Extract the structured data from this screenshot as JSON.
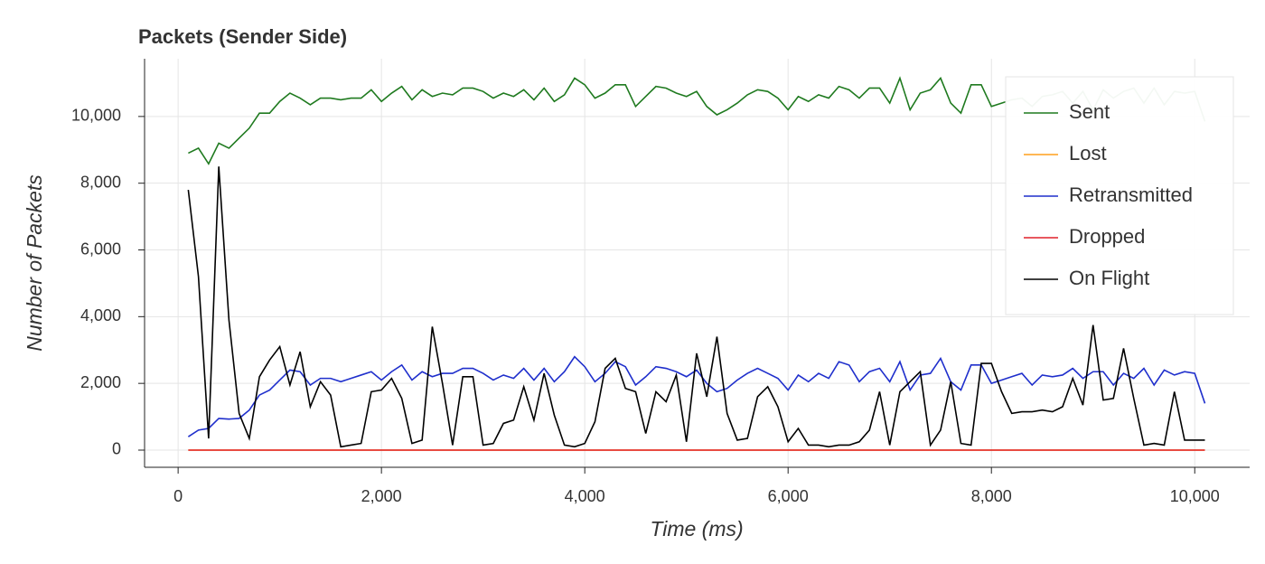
{
  "chart_data": {
    "type": "line",
    "title": "Packets (Sender Side)",
    "x_label": "Time (ms)",
    "y_label": "Number of Packets",
    "x": [
      100,
      200,
      300,
      400,
      500,
      600,
      700,
      800,
      900,
      1000,
      1100,
      1200,
      1300,
      1400,
      1500,
      1600,
      1700,
      1800,
      1900,
      2000,
      2100,
      2200,
      2300,
      2400,
      2500,
      2600,
      2700,
      2800,
      2900,
      3000,
      3100,
      3200,
      3300,
      3400,
      3500,
      3600,
      3700,
      3800,
      3900,
      4000,
      4100,
      4200,
      4300,
      4400,
      4500,
      4600,
      4700,
      4800,
      4900,
      5000,
      5100,
      5200,
      5300,
      5400,
      5500,
      5600,
      5700,
      5800,
      5900,
      6000,
      6100,
      6200,
      6300,
      6400,
      6500,
      6600,
      6700,
      6800,
      6900,
      7000,
      7100,
      7200,
      7300,
      7400,
      7500,
      7600,
      7700,
      7800,
      7900,
      8000,
      8100,
      8200,
      8300,
      8400,
      8500,
      8600,
      8700,
      8800,
      8900,
      9000,
      9100,
      9200,
      9300,
      9400,
      9500,
      9600,
      9700,
      9800,
      9900,
      10000,
      10100
    ],
    "series": [
      {
        "name": "Sent",
        "color": "#1f7a1f",
        "values": [
          8900,
          9050,
          8580,
          9200,
          9050,
          9350,
          9650,
          10100,
          10100,
          10450,
          10700,
          10550,
          10350,
          10550,
          10550,
          10500,
          10550,
          10550,
          10800,
          10450,
          10700,
          10900,
          10500,
          10800,
          10600,
          10700,
          10650,
          10850,
          10850,
          10750,
          10550,
          10700,
          10600,
          10800,
          10500,
          10850,
          10450,
          10650,
          11150,
          10950,
          10550,
          10700,
          10950,
          10950,
          10300,
          10600,
          10900,
          10850,
          10700,
          10600,
          10750,
          10300,
          10050,
          10200,
          10400,
          10650,
          10800,
          10750,
          10550,
          10200,
          10600,
          10450,
          10650,
          10550,
          10900,
          10800,
          10550,
          10850,
          10850,
          10400,
          11150,
          10200,
          10700,
          10800,
          11150,
          10400,
          10100,
          10950,
          10950,
          10300,
          10400,
          10500,
          10550,
          10300,
          10600,
          10650,
          10750,
          10400,
          10750,
          10200,
          10800,
          10550,
          10750,
          10850,
          10400,
          10850,
          10350,
          10750,
          10700,
          10750,
          9850
        ]
      },
      {
        "name": "Lost",
        "color": "#ff9f1c",
        "values": [
          0,
          0,
          0,
          0,
          0,
          0,
          0,
          0,
          0,
          0,
          0,
          0,
          0,
          0,
          0,
          0,
          0,
          0,
          0,
          0,
          0,
          0,
          0,
          0,
          0,
          0,
          0,
          0,
          0,
          0,
          0,
          0,
          0,
          0,
          0,
          0,
          0,
          0,
          0,
          0,
          0,
          0,
          0,
          0,
          0,
          0,
          0,
          0,
          0,
          0,
          0,
          0,
          0,
          0,
          0,
          0,
          0,
          0,
          0,
          0,
          0,
          0,
          0,
          0,
          0,
          0,
          0,
          0,
          0,
          0,
          0,
          0,
          0,
          0,
          0,
          0,
          0,
          0,
          0,
          0,
          0,
          0,
          0,
          0,
          0,
          0,
          0,
          0,
          0,
          0,
          0,
          0,
          0,
          0,
          0,
          0,
          0,
          0,
          0,
          0,
          0
        ]
      },
      {
        "name": "Retransmitted",
        "color": "#1f2fcc",
        "values": [
          400,
          600,
          650,
          950,
          930,
          950,
          1200,
          1650,
          1800,
          2100,
          2400,
          2350,
          1950,
          2150,
          2150,
          2050,
          2150,
          2250,
          2350,
          2100,
          2350,
          2550,
          2100,
          2350,
          2200,
          2300,
          2300,
          2450,
          2450,
          2300,
          2100,
          2250,
          2150,
          2450,
          2100,
          2450,
          2050,
          2350,
          2800,
          2500,
          2050,
          2300,
          2650,
          2500,
          1950,
          2200,
          2500,
          2450,
          2350,
          2200,
          2400,
          2000,
          1750,
          1850,
          2100,
          2300,
          2450,
          2300,
          2150,
          1800,
          2250,
          2050,
          2300,
          2150,
          2650,
          2550,
          2050,
          2350,
          2450,
          2050,
          2650,
          1800,
          2250,
          2300,
          2750,
          2050,
          1800,
          2550,
          2550,
          2000,
          2100,
          2200,
          2300,
          1950,
          2250,
          2200,
          2250,
          2450,
          2150,
          2350,
          2350,
          1950,
          2300,
          2150,
          2450,
          1950,
          2400,
          2250,
          2350,
          2300,
          1400
        ]
      },
      {
        "name": "Dropped",
        "color": "#e0202a",
        "values": [
          0,
          0,
          0,
          0,
          0,
          0,
          0,
          0,
          0,
          0,
          0,
          0,
          0,
          0,
          0,
          0,
          0,
          0,
          0,
          0,
          0,
          0,
          0,
          0,
          0,
          0,
          0,
          0,
          0,
          0,
          0,
          0,
          0,
          0,
          0,
          0,
          0,
          0,
          0,
          0,
          0,
          0,
          0,
          0,
          0,
          0,
          0,
          0,
          0,
          0,
          0,
          0,
          0,
          0,
          0,
          0,
          0,
          0,
          0,
          0,
          0,
          0,
          0,
          0,
          0,
          0,
          0,
          0,
          0,
          0,
          0,
          0,
          0,
          0,
          0,
          0,
          0,
          0,
          0,
          0,
          0,
          0,
          0,
          0,
          0,
          0,
          0,
          0,
          0,
          0,
          0,
          0,
          0,
          0,
          0,
          0,
          0,
          0,
          0,
          0,
          0
        ]
      },
      {
        "name": "On Flight",
        "color": "#000000",
        "values": [
          7800,
          5200,
          350,
          8500,
          3900,
          1100,
          350,
          2200,
          2700,
          3100,
          1950,
          2950,
          1300,
          2050,
          1650,
          100,
          150,
          200,
          1750,
          1800,
          2150,
          1550,
          200,
          300,
          3700,
          2000,
          150,
          2200,
          2200,
          150,
          200,
          800,
          900,
          1900,
          900,
          2300,
          1050,
          150,
          100,
          200,
          850,
          2450,
          2750,
          1850,
          1750,
          500,
          1750,
          1450,
          2250,
          250,
          2900,
          1600,
          3400,
          1100,
          300,
          350,
          1600,
          1900,
          1300,
          250,
          650,
          150,
          150,
          100,
          150,
          150,
          250,
          600,
          1750,
          150,
          1750,
          2050,
          2350,
          150,
          600,
          2050,
          200,
          150,
          2600,
          2600,
          1750,
          1100,
          1150,
          1150,
          1200,
          1150,
          1300,
          2150,
          1350,
          3750,
          1500,
          1550,
          3050,
          1550,
          150,
          200,
          150,
          1750,
          300,
          300,
          300
        ]
      }
    ],
    "xlim": [
      -330,
      10540
    ],
    "ylim": [
      -515,
      11730
    ],
    "xticks": [
      0,
      {
        "value": 2000,
        "label": "2,000"
      },
      {
        "value": 4000,
        "label": "4,000"
      },
      {
        "value": 6000,
        "label": "6,000"
      },
      {
        "value": 8000,
        "label": "8,000"
      },
      {
        "value": 10000,
        "label": "10,000"
      }
    ],
    "yticks": [
      0,
      {
        "value": 2000,
        "label": "2,000"
      },
      {
        "value": 4000,
        "label": "4,000"
      },
      {
        "value": 6000,
        "label": "6,000"
      },
      {
        "value": 8000,
        "label": "8,000"
      },
      {
        "value": 10000,
        "label": "10,000"
      }
    ],
    "grid": true,
    "legend": "upper right"
  }
}
